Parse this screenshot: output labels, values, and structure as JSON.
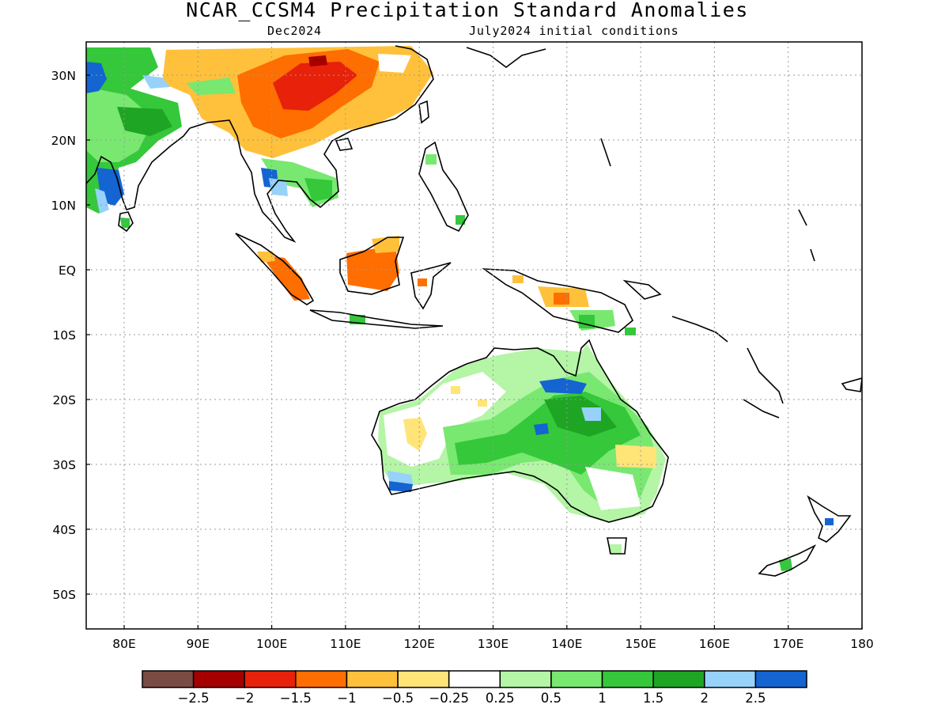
{
  "map": {
    "title": "NCAR_CCSM4 Precipitation Standard Anomalies",
    "valid_month": "Dec2024",
    "initial_conditions": "July2024 initial conditions",
    "lat_labels": [
      "30N",
      "20N",
      "10N",
      "EQ",
      "10S",
      "20S",
      "30S",
      "40S",
      "50S"
    ],
    "lon_labels": [
      "80E",
      "90E",
      "100E",
      "110E",
      "120E",
      "130E",
      "140E",
      "150E",
      "160E",
      "170E",
      "180"
    ],
    "grid": true,
    "colors": {
      "white": "#ffffff",
      "dry_minor": "#ffe478",
      "dry_025": "#ffc13b",
      "dry_05": "#ff6e00",
      "dry_1": "#e8210a",
      "dry_15": "#a50000",
      "dry_2": "#7a4b43",
      "wet_025": "#b4f5a6",
      "wet_05": "#78e870",
      "wet_1": "#34c83a",
      "wet_15": "#1ea523",
      "wet_2": "#96d2fa",
      "wet_25": "#1464d2",
      "land_outline": "#000000"
    }
  },
  "colorbar": {
    "colors": [
      "#7a4b43",
      "#a50000",
      "#e8210a",
      "#ff6e00",
      "#ffc13b",
      "#ffe478",
      "#ffffff",
      "#b4f5a6",
      "#78e870",
      "#34c83a",
      "#1ea523",
      "#96d2fa",
      "#1464d2"
    ],
    "labels": [
      "−2.5",
      "−2",
      "−1.5",
      "−1",
      "−0.5",
      "−0.25",
      "0.25",
      "0.5",
      "1",
      "1.5",
      "2",
      "2.5"
    ]
  }
}
